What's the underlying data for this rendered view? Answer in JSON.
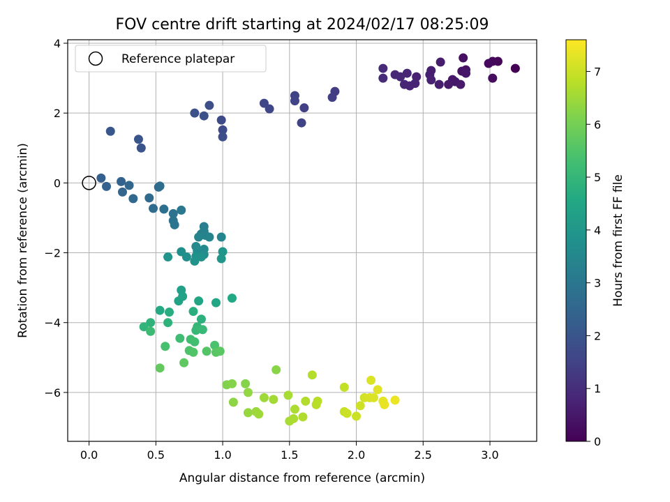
{
  "chart_data": {
    "type": "scatter",
    "title": "FOV centre drift starting at 2024/02/17 08:25:09",
    "xlabel": "Angular distance from reference (arcmin)",
    "ylabel": "Rotation from reference (arcmin)",
    "xlim": [
      -0.16,
      3.35
    ],
    "ylim": [
      -7.4,
      4.1
    ],
    "xticks": [
      0.0,
      0.5,
      1.0,
      1.5,
      2.0,
      2.5,
      3.0
    ],
    "xtick_labels": [
      "0.0",
      "0.5",
      "1.0",
      "1.5",
      "2.0",
      "2.5",
      "3.0"
    ],
    "yticks": [
      -6,
      -4,
      -2,
      0,
      2,
      4
    ],
    "ytick_labels": [
      "−6",
      "−4",
      "−2",
      "0",
      "2",
      "4"
    ],
    "grid": true,
    "legend": {
      "placement": "top-left",
      "entries": [
        "Reference platepar"
      ]
    },
    "colorbar": {
      "label": "Hours from first FF file",
      "range": [
        0,
        7.6
      ],
      "ticks": [
        0,
        1,
        2,
        3,
        4,
        5,
        6,
        7
      ],
      "tick_labels": [
        "0",
        "1",
        "2",
        "3",
        "4",
        "5",
        "6",
        "7"
      ],
      "colormap": "viridis"
    },
    "reference_point": {
      "x": 0.0,
      "y": 0.0
    },
    "points": [
      {
        "x": 3.19,
        "y": 3.28,
        "h": 0.0
      },
      {
        "x": 3.06,
        "y": 3.48,
        "h": 0.1
      },
      {
        "x": 3.02,
        "y": 3.48,
        "h": 0.15
      },
      {
        "x": 2.99,
        "y": 3.42,
        "h": 0.2
      },
      {
        "x": 3.02,
        "y": 3.0,
        "h": 0.25
      },
      {
        "x": 2.8,
        "y": 3.58,
        "h": 0.3
      },
      {
        "x": 2.82,
        "y": 3.24,
        "h": 0.35
      },
      {
        "x": 2.79,
        "y": 3.2,
        "h": 0.4
      },
      {
        "x": 2.82,
        "y": 3.14,
        "h": 0.45
      },
      {
        "x": 2.74,
        "y": 2.9,
        "h": 0.5
      },
      {
        "x": 2.72,
        "y": 2.96,
        "h": 0.5
      },
      {
        "x": 2.78,
        "y": 2.82,
        "h": 0.55
      },
      {
        "x": 2.69,
        "y": 2.82,
        "h": 0.55
      },
      {
        "x": 2.63,
        "y": 3.46,
        "h": 0.6
      },
      {
        "x": 2.62,
        "y": 2.82,
        "h": 0.6
      },
      {
        "x": 2.56,
        "y": 3.22,
        "h": 0.65
      },
      {
        "x": 2.55,
        "y": 3.1,
        "h": 0.65
      },
      {
        "x": 2.56,
        "y": 2.95,
        "h": 0.7
      },
      {
        "x": 2.45,
        "y": 3.04,
        "h": 0.7
      },
      {
        "x": 2.44,
        "y": 2.85,
        "h": 0.75
      },
      {
        "x": 2.4,
        "y": 2.78,
        "h": 0.75
      },
      {
        "x": 2.38,
        "y": 3.14,
        "h": 0.8
      },
      {
        "x": 2.36,
        "y": 2.82,
        "h": 0.8
      },
      {
        "x": 2.33,
        "y": 3.04,
        "h": 0.85
      },
      {
        "x": 2.29,
        "y": 3.1,
        "h": 0.85
      },
      {
        "x": 2.2,
        "y": 3.28,
        "h": 0.9
      },
      {
        "x": 2.2,
        "y": 3.0,
        "h": 0.9
      },
      {
        "x": 1.84,
        "y": 2.62,
        "h": 1.35
      },
      {
        "x": 1.82,
        "y": 2.45,
        "h": 1.4
      },
      {
        "x": 1.61,
        "y": 2.15,
        "h": 1.45
      },
      {
        "x": 1.59,
        "y": 1.72,
        "h": 1.5
      },
      {
        "x": 1.54,
        "y": 2.5,
        "h": 1.5
      },
      {
        "x": 1.54,
        "y": 2.35,
        "h": 1.55
      },
      {
        "x": 1.35,
        "y": 2.12,
        "h": 1.6
      },
      {
        "x": 1.31,
        "y": 2.28,
        "h": 1.6
      },
      {
        "x": 0.99,
        "y": 1.8,
        "h": 1.7
      },
      {
        "x": 1.0,
        "y": 1.52,
        "h": 1.75
      },
      {
        "x": 1.0,
        "y": 1.32,
        "h": 1.8
      },
      {
        "x": 0.9,
        "y": 2.22,
        "h": 1.8
      },
      {
        "x": 0.86,
        "y": 1.92,
        "h": 1.85
      },
      {
        "x": 0.79,
        "y": 2.0,
        "h": 1.85
      },
      {
        "x": 0.39,
        "y": 1.0,
        "h": 1.95
      },
      {
        "x": 0.37,
        "y": 1.25,
        "h": 2.0
      },
      {
        "x": 0.16,
        "y": 1.48,
        "h": 2.05
      },
      {
        "x": 0.09,
        "y": 0.14,
        "h": 2.3
      },
      {
        "x": 0.13,
        "y": -0.1,
        "h": 2.35
      },
      {
        "x": 0.24,
        "y": 0.04,
        "h": 2.4
      },
      {
        "x": 0.25,
        "y": -0.26,
        "h": 2.45
      },
      {
        "x": 0.3,
        "y": -0.07,
        "h": 2.5
      },
      {
        "x": 0.33,
        "y": -0.45,
        "h": 2.55
      },
      {
        "x": 0.45,
        "y": -0.43,
        "h": 2.6
      },
      {
        "x": 0.48,
        "y": -0.73,
        "h": 2.7
      },
      {
        "x": 0.52,
        "y": -0.12,
        "h": 2.65
      },
      {
        "x": 0.53,
        "y": -0.09,
        "h": 2.7
      },
      {
        "x": 0.56,
        "y": -0.75,
        "h": 2.8
      },
      {
        "x": 0.63,
        "y": -0.88,
        "h": 2.85
      },
      {
        "x": 0.63,
        "y": -1.08,
        "h": 2.9
      },
      {
        "x": 0.64,
        "y": -1.2,
        "h": 2.95
      },
      {
        "x": 0.69,
        "y": -0.78,
        "h": 3.0
      },
      {
        "x": 0.86,
        "y": -1.25,
        "h": 3.2
      },
      {
        "x": 0.86,
        "y": -1.38,
        "h": 3.25
      },
      {
        "x": 0.84,
        "y": -1.46,
        "h": 3.3
      },
      {
        "x": 0.87,
        "y": -1.5,
        "h": 3.35
      },
      {
        "x": 0.82,
        "y": -1.55,
        "h": 3.4
      },
      {
        "x": 0.9,
        "y": -1.55,
        "h": 3.4
      },
      {
        "x": 0.99,
        "y": -1.55,
        "h": 3.45
      },
      {
        "x": 0.8,
        "y": -1.82,
        "h": 3.55
      },
      {
        "x": 0.81,
        "y": -1.95,
        "h": 3.6
      },
      {
        "x": 0.86,
        "y": -1.9,
        "h": 3.6
      },
      {
        "x": 0.86,
        "y": -2.05,
        "h": 3.65
      },
      {
        "x": 0.69,
        "y": -1.97,
        "h": 3.7
      },
      {
        "x": 0.73,
        "y": -2.12,
        "h": 3.75
      },
      {
        "x": 0.8,
        "y": -2.1,
        "h": 3.8
      },
      {
        "x": 0.84,
        "y": -2.12,
        "h": 3.8
      },
      {
        "x": 0.79,
        "y": -2.24,
        "h": 3.85
      },
      {
        "x": 0.59,
        "y": -2.12,
        "h": 3.9
      },
      {
        "x": 1.0,
        "y": -1.97,
        "h": 3.95
      },
      {
        "x": 0.99,
        "y": -2.17,
        "h": 4.0
      },
      {
        "x": 0.69,
        "y": -3.07,
        "h": 4.3
      },
      {
        "x": 0.7,
        "y": -3.25,
        "h": 4.35
      },
      {
        "x": 0.67,
        "y": -3.38,
        "h": 4.4
      },
      {
        "x": 0.82,
        "y": -3.38,
        "h": 4.45
      },
      {
        "x": 0.95,
        "y": -3.43,
        "h": 4.5
      },
      {
        "x": 1.07,
        "y": -3.3,
        "h": 4.55
      },
      {
        "x": 0.53,
        "y": -3.65,
        "h": 4.6
      },
      {
        "x": 0.6,
        "y": -3.7,
        "h": 4.7
      },
      {
        "x": 0.78,
        "y": -3.68,
        "h": 4.75
      },
      {
        "x": 0.84,
        "y": -3.9,
        "h": 4.8
      },
      {
        "x": 0.59,
        "y": -4.0,
        "h": 4.85
      },
      {
        "x": 0.46,
        "y": -4.0,
        "h": 4.9
      },
      {
        "x": 0.41,
        "y": -4.12,
        "h": 4.95
      },
      {
        "x": 0.81,
        "y": -4.12,
        "h": 5.0
      },
      {
        "x": 0.8,
        "y": -4.22,
        "h": 5.05
      },
      {
        "x": 0.85,
        "y": -4.2,
        "h": 5.1
      },
      {
        "x": 0.46,
        "y": -4.25,
        "h": 5.15
      },
      {
        "x": 0.68,
        "y": -4.45,
        "h": 5.2
      },
      {
        "x": 0.76,
        "y": -4.48,
        "h": 5.25
      },
      {
        "x": 0.79,
        "y": -4.55,
        "h": 5.3
      },
      {
        "x": 0.57,
        "y": -4.68,
        "h": 5.35
      },
      {
        "x": 0.94,
        "y": -4.65,
        "h": 5.4
      },
      {
        "x": 0.75,
        "y": -4.8,
        "h": 5.45
      },
      {
        "x": 0.78,
        "y": -4.85,
        "h": 5.5
      },
      {
        "x": 0.88,
        "y": -4.82,
        "h": 5.55
      },
      {
        "x": 0.95,
        "y": -4.85,
        "h": 5.6
      },
      {
        "x": 0.98,
        "y": -4.82,
        "h": 5.65
      },
      {
        "x": 0.71,
        "y": -5.15,
        "h": 5.7
      },
      {
        "x": 0.53,
        "y": -5.3,
        "h": 5.75
      },
      {
        "x": 1.03,
        "y": -5.78,
        "h": 6.15
      },
      {
        "x": 1.07,
        "y": -5.75,
        "h": 6.2
      },
      {
        "x": 1.17,
        "y": -5.75,
        "h": 6.2
      },
      {
        "x": 1.4,
        "y": -5.35,
        "h": 6.25
      },
      {
        "x": 1.08,
        "y": -6.28,
        "h": 6.3
      },
      {
        "x": 1.19,
        "y": -6.0,
        "h": 6.35
      },
      {
        "x": 1.19,
        "y": -6.58,
        "h": 6.4
      },
      {
        "x": 1.25,
        "y": -6.55,
        "h": 6.45
      },
      {
        "x": 1.27,
        "y": -6.62,
        "h": 6.5
      },
      {
        "x": 1.31,
        "y": -6.15,
        "h": 6.5
      },
      {
        "x": 1.38,
        "y": -6.2,
        "h": 6.55
      },
      {
        "x": 1.49,
        "y": -6.08,
        "h": 6.6
      },
      {
        "x": 1.5,
        "y": -6.82,
        "h": 6.6
      },
      {
        "x": 1.53,
        "y": -6.75,
        "h": 6.65
      },
      {
        "x": 1.54,
        "y": -6.48,
        "h": 6.65
      },
      {
        "x": 1.6,
        "y": -6.7,
        "h": 6.7
      },
      {
        "x": 1.62,
        "y": -6.25,
        "h": 6.7
      },
      {
        "x": 1.67,
        "y": -5.5,
        "h": 6.75
      },
      {
        "x": 1.7,
        "y": -6.35,
        "h": 6.8
      },
      {
        "x": 1.71,
        "y": -6.25,
        "h": 6.8
      },
      {
        "x": 1.91,
        "y": -5.85,
        "h": 6.9
      },
      {
        "x": 1.91,
        "y": -6.55,
        "h": 6.95
      },
      {
        "x": 1.93,
        "y": -6.6,
        "h": 7.0
      },
      {
        "x": 2.0,
        "y": -6.68,
        "h": 7.0
      },
      {
        "x": 2.03,
        "y": -6.38,
        "h": 7.05
      },
      {
        "x": 2.06,
        "y": -6.15,
        "h": 7.1
      },
      {
        "x": 2.1,
        "y": -6.15,
        "h": 7.15
      },
      {
        "x": 2.11,
        "y": -5.65,
        "h": 7.2
      },
      {
        "x": 2.13,
        "y": -6.15,
        "h": 7.2
      },
      {
        "x": 2.16,
        "y": -5.92,
        "h": 7.25
      },
      {
        "x": 2.2,
        "y": -6.25,
        "h": 7.3
      },
      {
        "x": 2.21,
        "y": -6.35,
        "h": 7.35
      },
      {
        "x": 2.29,
        "y": -6.22,
        "h": 7.4
      }
    ]
  }
}
